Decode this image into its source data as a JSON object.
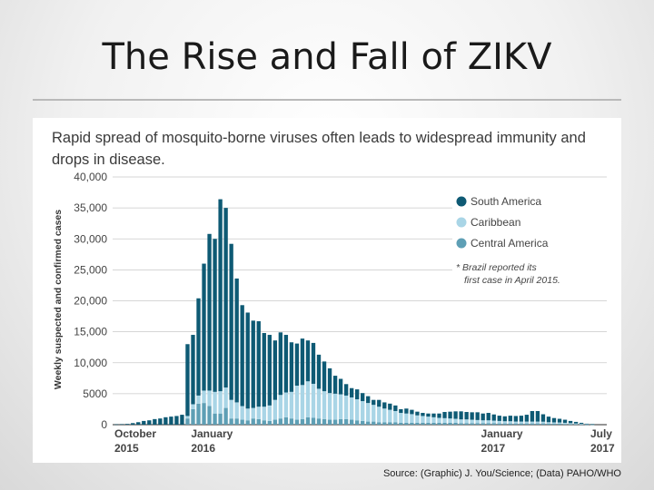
{
  "slide": {
    "title": "The Rise and Fall of ZIKV",
    "source": "Source: (Graphic) J. You/Science; (Data) PAHO/WHO"
  },
  "chart_data": {
    "type": "bar",
    "stacked": true,
    "title": "Rapid spread of mosquito-borne viruses often leads to widespread immunity and drops in disease.",
    "ylabel": "Weekly suspected and confirmed cases",
    "xlabel": "",
    "ylim": [
      0,
      40000
    ],
    "yticks": [
      0,
      5000,
      10000,
      15000,
      20000,
      25000,
      30000,
      35000,
      40000
    ],
    "ytick_labels": [
      "0",
      "5000",
      "10,000",
      "15,000",
      "20,000",
      "25,000",
      "30,000",
      "35,000",
      "40,000"
    ],
    "x_tick_labels": [
      {
        "index": 0,
        "line1": "October",
        "line2": "2015"
      },
      {
        "index": 14,
        "line1": "January",
        "line2": "2016"
      },
      {
        "index": 67,
        "line1": "January",
        "line2": "2017"
      },
      {
        "index": 87,
        "line1": "July",
        "line2": "2017"
      }
    ],
    "annotation": "* Brazil reported its first case in April 2015.",
    "colors": {
      "South America": "#0e5a74",
      "Caribbean": "#a9d5e6",
      "Central America": "#5e9fb5"
    },
    "series": [
      {
        "name": "South America",
        "values": [
          50,
          80,
          120,
          250,
          400,
          600,
          700,
          900,
          1000,
          1200,
          1300,
          1400,
          1600,
          11600,
          11200,
          15700,
          20500,
          25300,
          24700,
          31000,
          29000,
          25200,
          20000,
          16300,
          15500,
          14100,
          13800,
          11900,
          11400,
          9600,
          10100,
          9300,
          8000,
          6800,
          7500,
          6600,
          6600,
          5500,
          4800,
          4000,
          2900,
          2500,
          1850,
          1500,
          1600,
          1300,
          1100,
          800,
          1100,
          1000,
          1000,
          900,
          600,
          800,
          700,
          600,
          500,
          500,
          600,
          700,
          1000,
          1100,
          1200,
          1300,
          1200,
          1200,
          1250,
          1100,
          1200,
          1000,
          850,
          800,
          900,
          900,
          950,
          1100,
          1700,
          1700,
          1200,
          900,
          700,
          600,
          500,
          350,
          250,
          150,
          80,
          50
        ]
      },
      {
        "name": "Caribbean",
        "values": [
          0,
          0,
          0,
          0,
          0,
          0,
          0,
          0,
          0,
          0,
          0,
          0,
          0,
          400,
          800,
          1300,
          2000,
          2500,
          3500,
          3600,
          3300,
          3000,
          2600,
          2200,
          1900,
          1700,
          2000,
          2200,
          2500,
          3200,
          3800,
          4000,
          4300,
          5500,
          5500,
          5800,
          5500,
          4800,
          4500,
          4300,
          4200,
          4000,
          3800,
          3600,
          3400,
          3200,
          3000,
          2700,
          2500,
          2200,
          2000,
          1800,
          1600,
          1500,
          1400,
          1200,
          1100,
          1000,
          900,
          800,
          750,
          700,
          650,
          600,
          600,
          550,
          500,
          450,
          450,
          400,
          400,
          350,
          350,
          300,
          300,
          300,
          300,
          300,
          280,
          250,
          220,
          200,
          180,
          150,
          120,
          100,
          50,
          20
        ]
      },
      {
        "name": "Central America",
        "values": [
          0,
          0,
          0,
          0,
          0,
          0,
          0,
          0,
          0,
          0,
          0,
          0,
          0,
          1000,
          2500,
          3400,
          3500,
          3000,
          1800,
          1800,
          2700,
          1000,
          1000,
          800,
          700,
          1000,
          900,
          700,
          600,
          800,
          1000,
          1200,
          1000,
          800,
          900,
          1200,
          1100,
          1000,
          900,
          800,
          800,
          900,
          900,
          800,
          700,
          600,
          500,
          500,
          400,
          400,
          400,
          400,
          300,
          300,
          300,
          300,
          300,
          300,
          300,
          300,
          300,
          300,
          300,
          250,
          250,
          250,
          250,
          250,
          250,
          250,
          200,
          200,
          200,
          200,
          200,
          200,
          200,
          200,
          200,
          150,
          150,
          150,
          120,
          100,
          80,
          50,
          30,
          30
        ]
      }
    ],
    "legend": [
      "South America",
      "Caribbean",
      "Central America"
    ]
  }
}
